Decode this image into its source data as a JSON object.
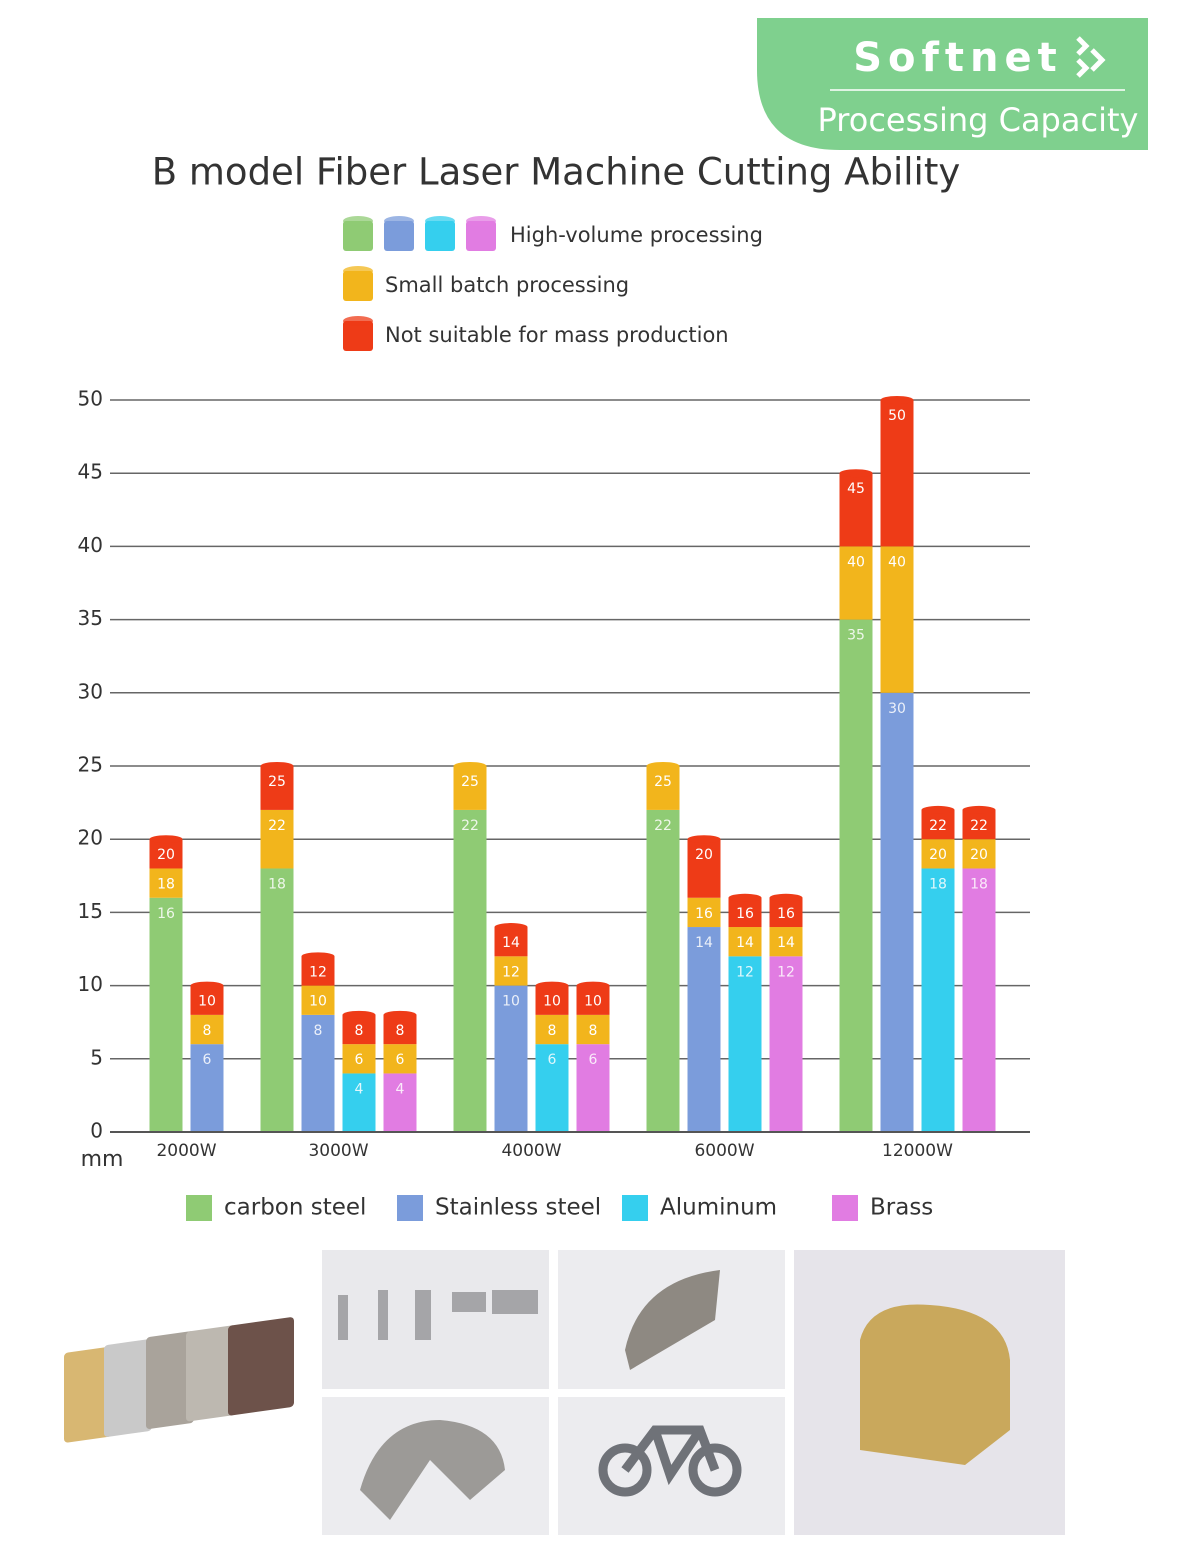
{
  "header": {
    "brand": "Softnet",
    "subtitle": "Processing Capacity"
  },
  "chart_data": {
    "type": "range-bar",
    "title": "B model Fiber Laser Machine Cutting Ability",
    "levels": [
      {
        "name": "High-volume processing"
      },
      {
        "name": "Small batch processing",
        "color": "#f2b51c"
      },
      {
        "name": "Not suitable for mass production",
        "color": "#ee3b17"
      }
    ],
    "categories": [
      "2000W",
      "3000W",
      "4000W",
      "6000W",
      "12000W"
    ],
    "series": [
      {
        "name": "carbon steel",
        "color": "#8fcb74",
        "values": [
          [
            16,
            18,
            20
          ],
          [
            18,
            22,
            25
          ],
          [
            22,
            25,
            null
          ],
          [
            22,
            25,
            null
          ],
          [
            35,
            40,
            45
          ]
        ]
      },
      {
        "name": "Stainless steel",
        "color": "#7b9cdb",
        "values": [
          [
            6,
            8,
            10
          ],
          [
            8,
            10,
            12
          ],
          [
            10,
            12,
            14
          ],
          [
            14,
            16,
            20
          ],
          [
            30,
            40,
            50
          ]
        ]
      },
      {
        "name": "Aluminum",
        "color": "#35cfee",
        "values": [
          null,
          [
            4,
            6,
            8
          ],
          [
            6,
            8,
            10
          ],
          [
            12,
            14,
            16
          ],
          [
            18,
            20,
            22
          ]
        ]
      },
      {
        "name": "Brass",
        "color": "#e17ce2",
        "values": [
          null,
          [
            4,
            6,
            8
          ],
          [
            6,
            8,
            10
          ],
          [
            12,
            14,
            16
          ],
          [
            18,
            20,
            22
          ]
        ]
      }
    ],
    "y_label": "mm",
    "ylim": [
      0,
      50
    ],
    "yticks": [
      0,
      5,
      10,
      15,
      20,
      25,
      30,
      35,
      40,
      45,
      50
    ],
    "grid": true
  }
}
